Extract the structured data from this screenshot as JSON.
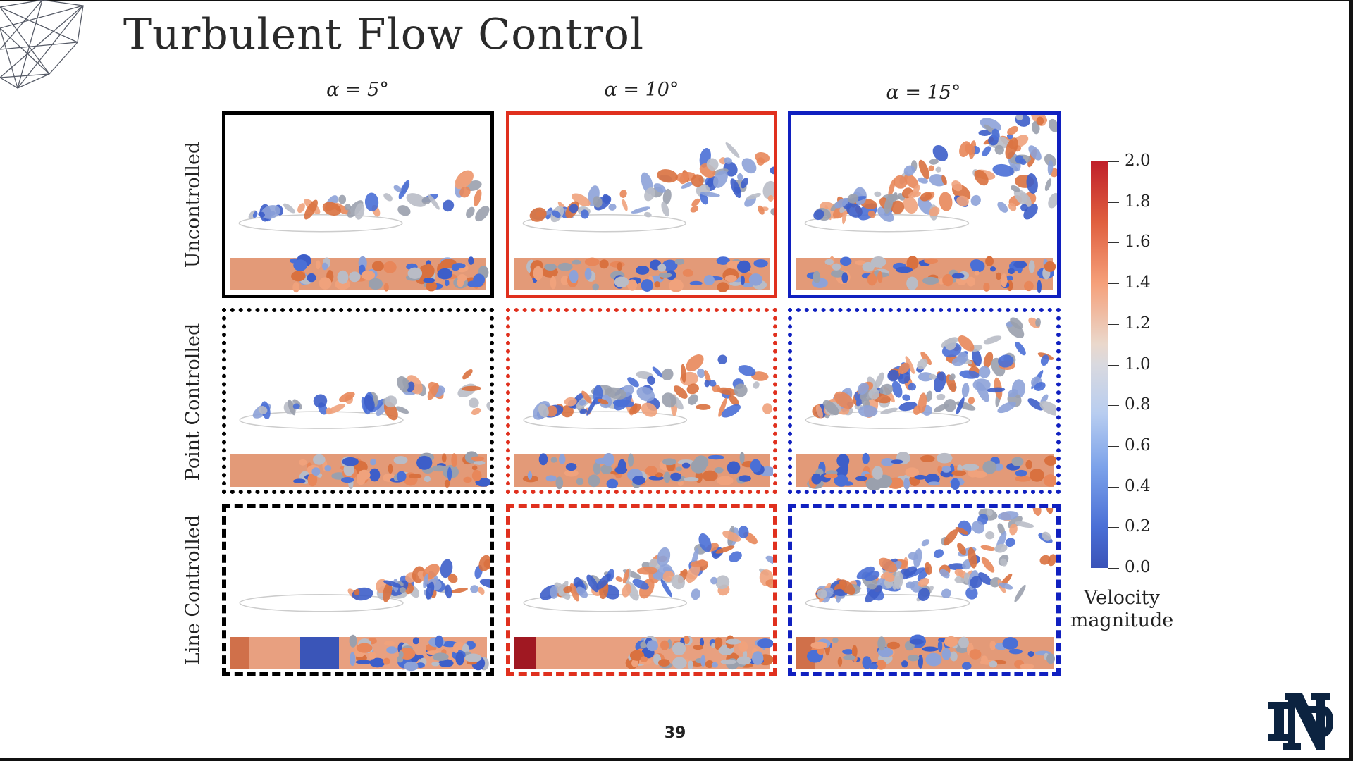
{
  "slide": {
    "title": "Turbulent Flow Control",
    "page_number": "39"
  },
  "columns": [
    {
      "label": "α = 5°",
      "color": "#000000"
    },
    {
      "label": "α = 10°",
      "color": "#e0301e"
    },
    {
      "label": "α = 15°",
      "color": "#1020c0"
    }
  ],
  "rows": [
    {
      "label": "Uncontrolled",
      "border_style": "solid"
    },
    {
      "label": "Point Controlled",
      "border_style": "dotted"
    },
    {
      "label": "Line Controlled",
      "border_style": "dashed"
    }
  ],
  "colorbar": {
    "title_line1": "Velocity",
    "title_line2": "magnitude",
    "min": 0.0,
    "max": 2.0,
    "ticks": [
      "2.0",
      "1.8",
      "1.6",
      "1.4",
      "1.2",
      "1.0",
      "0.8",
      "0.6",
      "0.4",
      "0.2",
      "0.0"
    ],
    "colormap": "coolwarm"
  },
  "logos": {
    "university": "ND"
  }
}
